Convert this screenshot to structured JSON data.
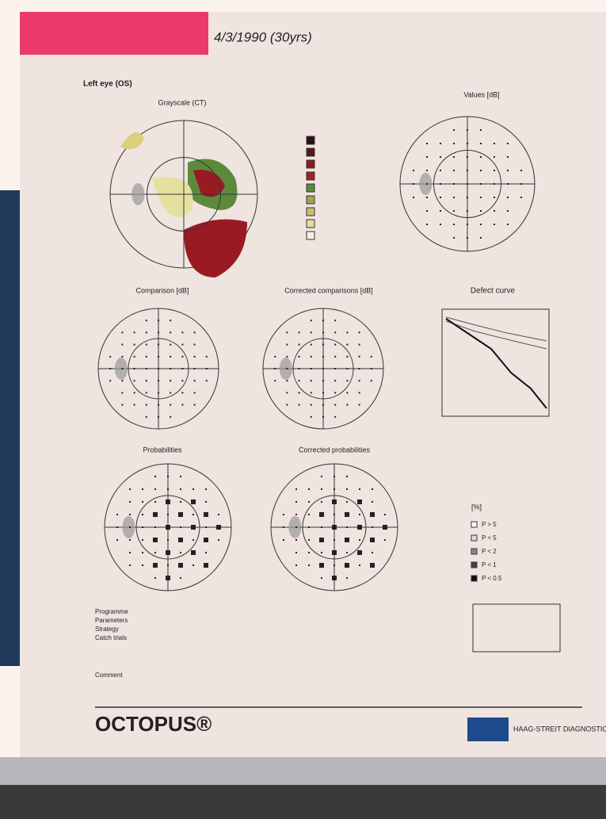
{
  "header": {
    "date": "4/3/1990 (30yrs)",
    "eye": "Left eye (OS)"
  },
  "plots": [
    {
      "title": "Grayscale (CT)"
    },
    {
      "title": "Values [dB]"
    },
    {
      "title": "Comparison [dB]"
    },
    {
      "title": "Corrected comparisons [dB]"
    },
    {
      "title": "Defect curve"
    },
    {
      "title": "Probabilities"
    },
    {
      "title": "Corrected probabilities"
    }
  ],
  "legend": {
    "unit": "[%]",
    "items": [
      "P > 5",
      "P < 5",
      "P < 2",
      "P < 1",
      "P < 0.5"
    ]
  },
  "info": {
    "labels": [
      "Programme",
      "Parameters",
      "Strategy",
      "Catch trials",
      "Comment"
    ]
  },
  "footer": {
    "brand": "OCTOPUS®",
    "company": "HAAG-STREIT DIAGNOSTICS"
  }
}
